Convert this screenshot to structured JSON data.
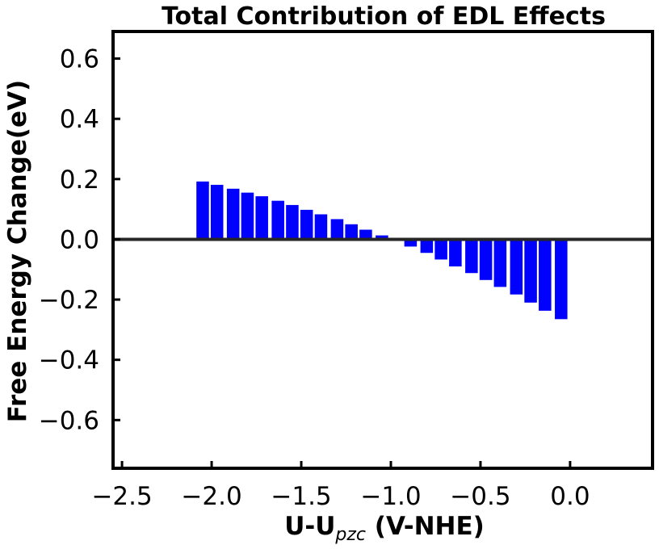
{
  "chart_data": {
    "type": "bar",
    "title": "Total Contribution of EDL Effects",
    "xlabel": {
      "main": "U-U",
      "subscript": "pzc",
      "suffix": " (V-NHE)"
    },
    "ylabel": "Free Energy Change(eV)",
    "xlim": [
      -2.55,
      0.46
    ],
    "ylim": [
      -0.76,
      0.69
    ],
    "xticks": [
      -2.5,
      -2.0,
      -1.5,
      -1.0,
      -0.5,
      0.0
    ],
    "xtick_labels": [
      "−2.5",
      "−2.0",
      "−1.5",
      "−1.0",
      "−0.5",
      "0.0"
    ],
    "yticks": [
      0.6,
      0.4,
      0.2,
      0.0,
      -0.2,
      -0.4,
      -0.6
    ],
    "ytick_labels": [
      "0.6",
      "0.4",
      "0.2",
      "0.0",
      "−0.2",
      "−0.4",
      "−0.6"
    ],
    "bar_width": 0.07,
    "x": [
      -2.05,
      -1.97,
      -1.88,
      -1.8,
      -1.72,
      -1.63,
      -1.55,
      -1.47,
      -1.39,
      -1.3,
      -1.22,
      -1.14,
      -1.05,
      -0.97,
      -0.89,
      -0.8,
      -0.72,
      -0.64,
      -0.55,
      -0.47,
      -0.39,
      -0.3,
      -0.22,
      -0.14,
      -0.05
    ],
    "values": [
      0.192,
      0.181,
      0.168,
      0.155,
      0.143,
      0.128,
      0.114,
      0.098,
      0.083,
      0.067,
      0.05,
      0.032,
      0.013,
      0.0,
      -0.024,
      -0.045,
      -0.067,
      -0.09,
      -0.112,
      -0.135,
      -0.158,
      -0.183,
      -0.21,
      -0.237,
      -0.265
    ],
    "bar_color": "#0000ff",
    "zero_line_color": "#262626",
    "grid": false,
    "legend": null
  }
}
